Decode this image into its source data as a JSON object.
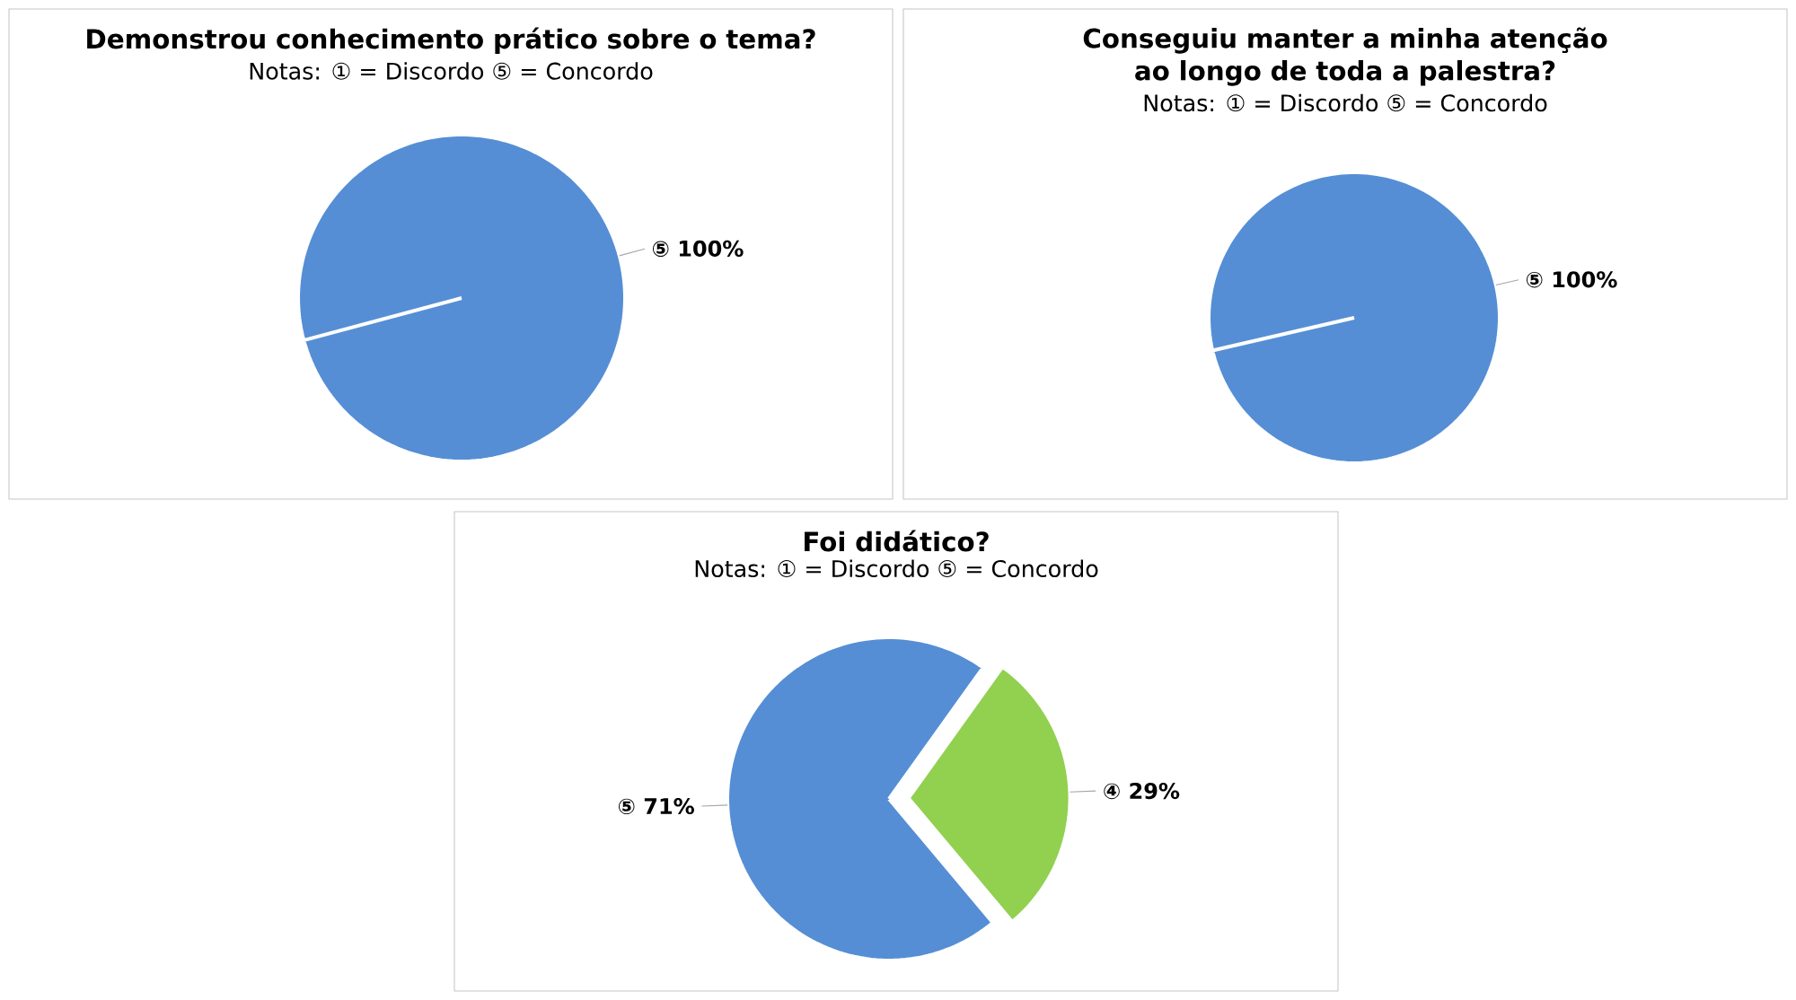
{
  "chart_data": [
    {
      "type": "pie",
      "title": "Demonstrou conhecimento prático sobre o tema?",
      "subtitle": "Notas:  ① = Discordo   ⑤ = Concordo",
      "categories": [
        "⑤"
      ],
      "values": [
        100
      ],
      "colors": [
        "#558ed5"
      ],
      "value_labels": [
        "100%"
      ]
    },
    {
      "type": "pie",
      "title": "Conseguiu manter a minha atenção ao longo de toda a palestra?",
      "subtitle": "Notas:  ① = Discordo   ⑤ = Concordo",
      "categories": [
        "⑤"
      ],
      "values": [
        100
      ],
      "colors": [
        "#558ed5"
      ],
      "value_labels": [
        "100%"
      ]
    },
    {
      "type": "pie",
      "title": "Foi didático?",
      "subtitle": "Notas:  ① = Discordo   ⑤ = Concordo",
      "categories": [
        "⑤",
        "④"
      ],
      "values": [
        71,
        29
      ],
      "colors": [
        "#558ed5",
        "#92d050"
      ],
      "value_labels": [
        "71%",
        "29%"
      ]
    }
  ]
}
